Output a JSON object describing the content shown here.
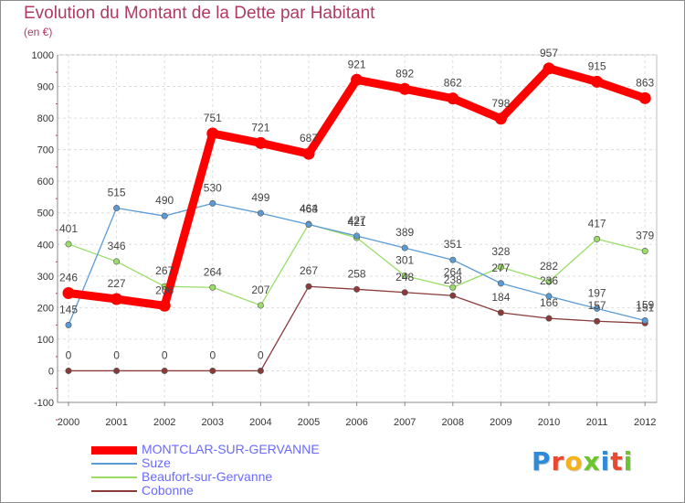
{
  "title": "Evolution du Montant de la Dette par Habitant",
  "subtitle": "(en €)",
  "logo": {
    "text": "Proxiti",
    "letter_colors": [
      "#2e8bd9",
      "#e8492f",
      "#f5b21a",
      "#6cc52e",
      "#2e8bd9",
      "#e8492f",
      "#6cc52e"
    ]
  },
  "chart_data": {
    "type": "line",
    "x": [
      "2000",
      "2001",
      "2002",
      "2003",
      "2004",
      "2005",
      "2006",
      "2007",
      "2008",
      "2009",
      "2010",
      "2011",
      "2012"
    ],
    "ylim": [
      -100,
      1000
    ],
    "yticks": [
      "-100",
      "0",
      "100",
      "200",
      "300",
      "400",
      "500",
      "600",
      "700",
      "800",
      "900",
      "1000"
    ],
    "grid": true,
    "legend_position": "bottom-left",
    "series": [
      {
        "name": "MONTCLAR-SUR-GERVANNE",
        "color": "#ff0000",
        "values": [
          246,
          227,
          206,
          751,
          721,
          687,
          921,
          892,
          862,
          798,
          957,
          915,
          863
        ],
        "labels": [
          "246",
          "227",
          "206",
          "751",
          "721",
          "687",
          "921",
          "892",
          "862",
          "798",
          "957",
          "915",
          "863"
        ]
      },
      {
        "name": "Suze",
        "color": "#5b9bd5",
        "values": [
          145,
          515,
          490,
          530,
          499,
          463,
          427,
          389,
          351,
          277,
          236,
          197,
          159
        ],
        "labels": [
          "145",
          "515",
          "490",
          "530",
          "499",
          "463",
          "427",
          "389",
          "351",
          "277",
          "236",
          "197",
          "159"
        ]
      },
      {
        "name": "Beaufort-sur-Gervanne",
        "color": "#99dd66",
        "values": [
          401,
          346,
          267,
          264,
          207,
          464,
          421,
          301,
          264,
          328,
          282,
          417,
          379
        ],
        "labels": [
          "401",
          "346",
          "267",
          "264",
          "207",
          "464",
          "421",
          "301",
          "264",
          "328",
          "282",
          "417",
          "379"
        ]
      },
      {
        "name": "Cobonne",
        "color": "#8b3a3a",
        "values": [
          0,
          0,
          0,
          0,
          0,
          267,
          258,
          248,
          238,
          184,
          166,
          157,
          151
        ],
        "labels": [
          "0",
          "0",
          "0",
          "0",
          "0",
          "267",
          "258",
          "248",
          "238",
          "184",
          "166",
          "157",
          "151"
        ]
      }
    ]
  }
}
